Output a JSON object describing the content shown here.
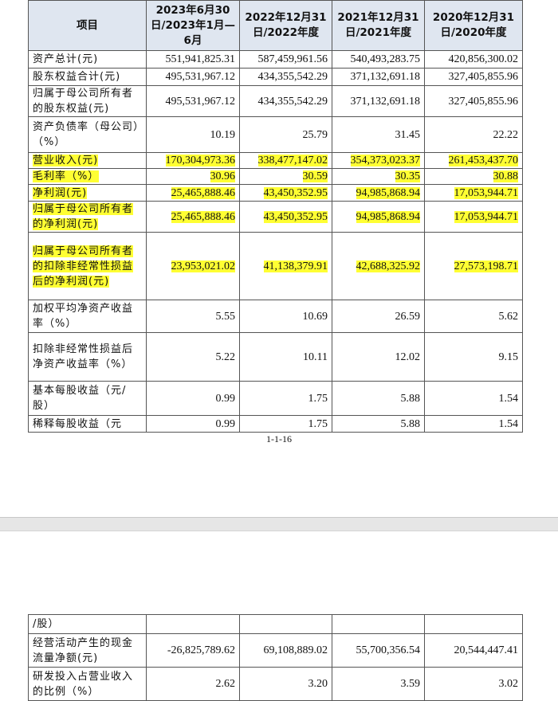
{
  "page1": {
    "table": {
      "header": [
        "项目",
        "2023年6月30日/2023年1月—6月",
        "2022年12月31日/2022年度",
        "2021年12月31日/2021年度",
        "2020年12月31日/2020年度"
      ],
      "rows": [
        {
          "cells": [
            "资产总计(元)",
            "551,941,825.31",
            "587,459,961.56",
            "540,493,283.75",
            "420,856,300.02"
          ]
        },
        {
          "cells": [
            "股东权益合计(元)",
            "495,531,967.12",
            "434,355,542.29",
            "371,132,691.18",
            "327,405,855.96"
          ]
        },
        {
          "cells": [
            "归属于母公司所有者的股东权益(元)",
            "495,531,967.12",
            "434,355,542.29",
            "371,132,691.18",
            "327,405,855.96"
          ]
        },
        {
          "cells": [
            "资产负债率（母公司）（%）",
            "10.19",
            "25.79",
            "31.45",
            "22.22"
          ]
        },
        {
          "cells": [
            "营业收入(元)",
            "170,304,973.36",
            "338,477,147.02",
            "354,373,023.37",
            "261,453,437.70"
          ],
          "highlighted": true
        },
        {
          "cells": [
            "毛利率（%）",
            "30.96",
            "30.59",
            "30.35",
            "30.88"
          ],
          "highlighted": true
        },
        {
          "cells": [
            "净利润(元)",
            "25,465,888.46",
            "43,450,352.95",
            "94,985,868.94",
            "17,053,944.71"
          ],
          "highlighted": true
        },
        {
          "cells": [
            "归属于母公司所有者的净利润(元)",
            "25,465,888.46",
            "43,450,352.95",
            "94,985,868.94",
            "17,053,944.71"
          ],
          "highlighted": true
        },
        {
          "cells": [
            "归属于母公司所有者的扣除非经常性损益后的净利润(元)",
            "23,953,021.02",
            "41,138,379.91",
            "42,688,325.92",
            "27,573,198.71"
          ],
          "highlighted": true
        },
        {
          "cells": [
            "加权平均净资产收益率（%）",
            "5.55",
            "10.69",
            "26.59",
            "5.62"
          ]
        },
        {
          "cells": [
            "扣除非经常性损益后净资产收益率（%）",
            "5.22",
            "10.11",
            "12.02",
            "9.15"
          ]
        },
        {
          "cells": [
            "基本每股收益（元/股）",
            "0.99",
            "1.75",
            "5.88",
            "1.54"
          ]
        },
        {
          "cells": [
            "稀释每股收益（元",
            "0.99",
            "1.75",
            "5.88",
            "1.54"
          ]
        }
      ]
    },
    "page_number": "1-1-16"
  },
  "page2": {
    "table": {
      "rows": [
        {
          "cells": [
            "/股）",
            null,
            null,
            null,
            null
          ]
        },
        {
          "cells": [
            "经营活动产生的现金流量净额(元)",
            "-26,825,789.62",
            "69,108,889.02",
            "55,700,356.54",
            "20,544,447.41"
          ]
        },
        {
          "cells": [
            "研发投入占营业收入的比例（%）",
            "2.62",
            "3.20",
            "3.59",
            "3.02"
          ]
        }
      ]
    }
  }
}
